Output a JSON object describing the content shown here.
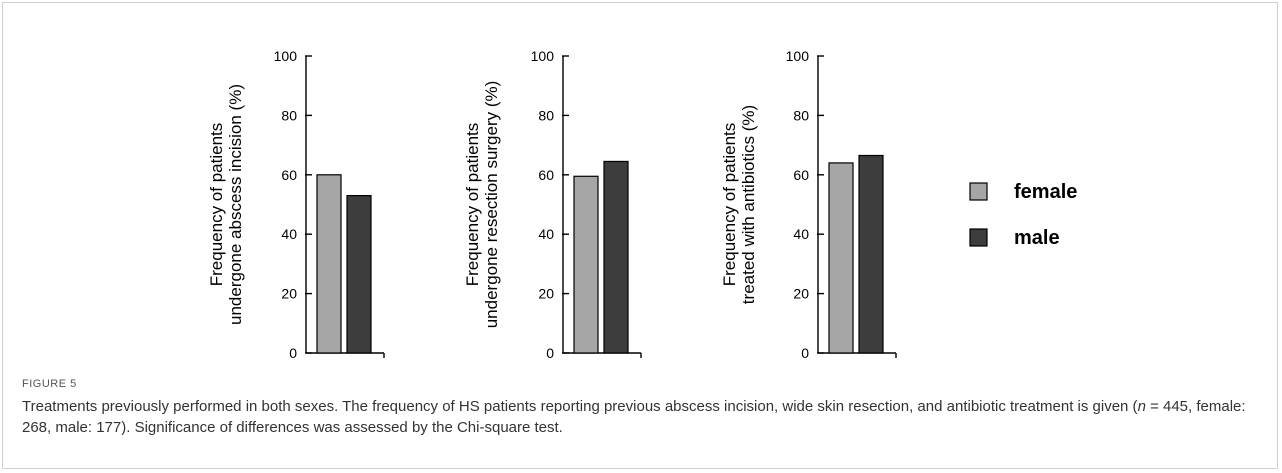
{
  "figure": {
    "label": "FIGURE 5",
    "caption": {
      "before_n": "Treatments previously performed in both sexes. The frequency of HS patients reporting previous abscess incision, wide skin resection, and antibiotic treatment is given (",
      "n_symbol": "n",
      "after_n": " = 445, female: 268, male: 177). Significance of differences was assessed by the Chi-square test."
    }
  },
  "colors": {
    "female": "#a6a6a6",
    "male": "#3d3d3d",
    "axis": "#000000"
  },
  "chart_data": [
    {
      "type": "bar",
      "ylabel": [
        "Frequency of patients",
        "undergone abscess incision (%)"
      ],
      "ylim": [
        0,
        100
      ],
      "yticks": [
        0,
        20,
        40,
        60,
        80,
        100
      ],
      "series": [
        {
          "name": "female",
          "values": [
            60
          ]
        },
        {
          "name": "male",
          "values": [
            53
          ]
        }
      ]
    },
    {
      "type": "bar",
      "ylabel": [
        "Frequency of patients",
        "undergone resection surgery (%)"
      ],
      "ylim": [
        0,
        100
      ],
      "yticks": [
        0,
        20,
        40,
        60,
        80,
        100
      ],
      "series": [
        {
          "name": "female",
          "values": [
            59.5
          ]
        },
        {
          "name": "male",
          "values": [
            64.5
          ]
        }
      ]
    },
    {
      "type": "bar",
      "ylabel": [
        "Frequency of patients",
        "treated with antibiotics (%)"
      ],
      "ylim": [
        0,
        100
      ],
      "yticks": [
        0,
        20,
        40,
        60,
        80,
        100
      ],
      "series": [
        {
          "name": "female",
          "values": [
            64
          ]
        },
        {
          "name": "male",
          "values": [
            66.5
          ]
        }
      ]
    }
  ],
  "legend": {
    "placement": "right",
    "items": [
      "female",
      "male"
    ]
  }
}
